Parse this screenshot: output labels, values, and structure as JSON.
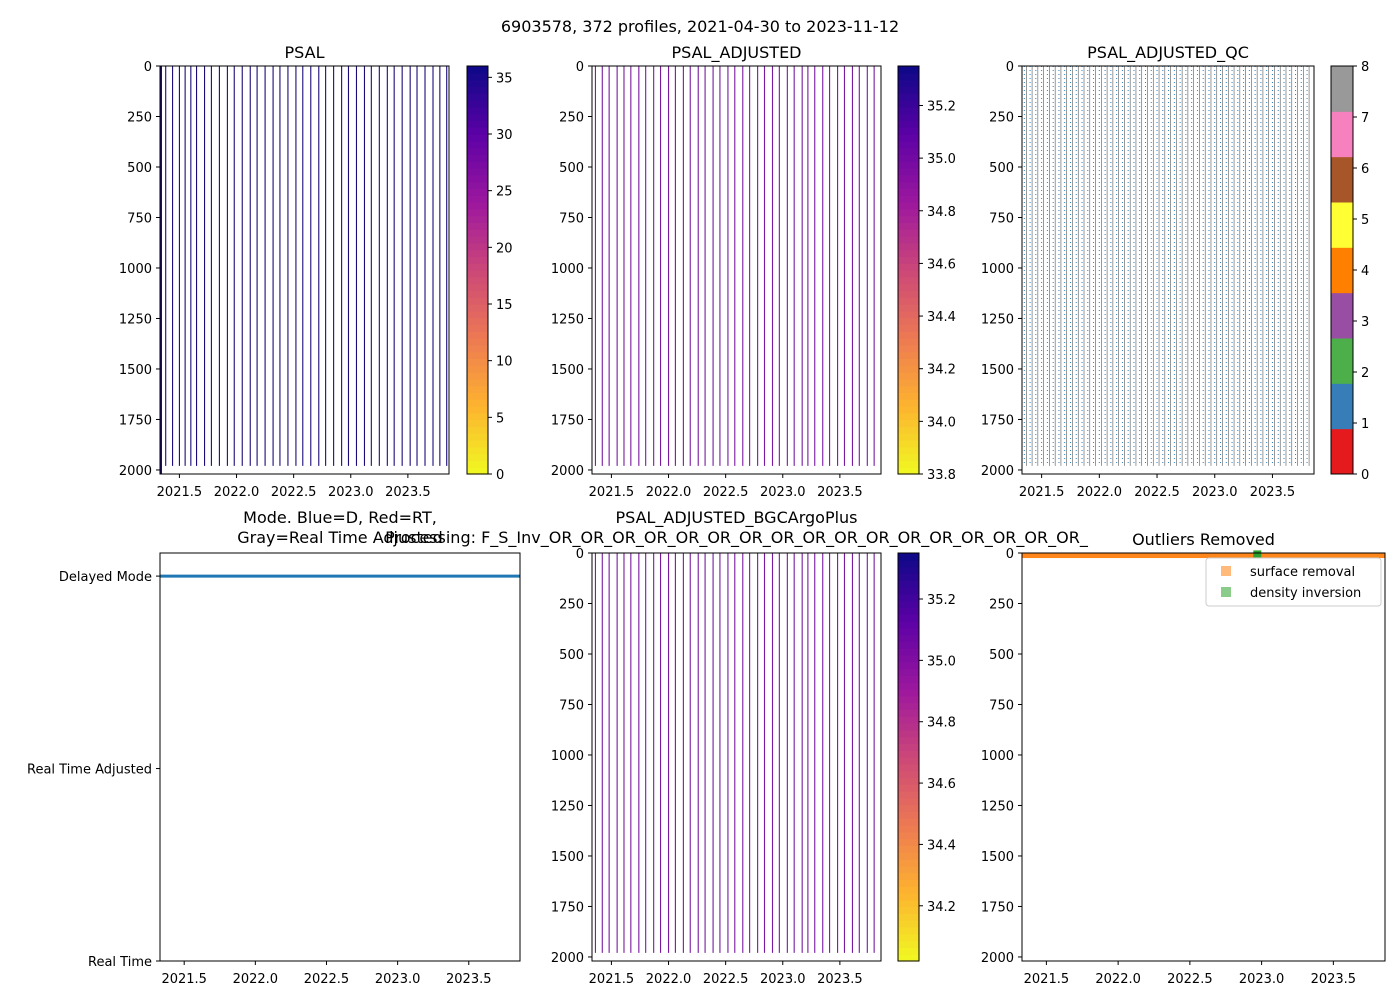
{
  "figure": {
    "suptitle": "6903578, 372 profiles, 2021-04-30 to 2023-11-12"
  },
  "colors": {
    "psal_lines": "#1b0c7a",
    "adjusted_lines": "#7a1aa0",
    "mode_line": "#1f77b4",
    "qc_points": "#2d7fb8",
    "outlier_surface": "#ff7f0e",
    "outlier_density": "#2ca02c"
  },
  "chart_data": [
    {
      "id": "psal",
      "type": "heatmap",
      "title": "PSAL",
      "xlim": [
        2021.33,
        2023.86
      ],
      "ylim": [
        2020,
        0
      ],
      "xticks": [
        "2021.5",
        "2022.0",
        "2022.5",
        "2023.0",
        "2023.5"
      ],
      "xtick_values": [
        2021.5,
        2022.0,
        2022.5,
        2023.0,
        2023.5
      ],
      "yticks": [
        "0",
        "250",
        "500",
        "750",
        "1000",
        "1250",
        "1500",
        "1750",
        "2000"
      ],
      "ytick_values": [
        0,
        250,
        500,
        750,
        1000,
        1250,
        1500,
        1750,
        2000
      ],
      "colorbar": {
        "cmap": "plasma_r",
        "range": [
          0,
          36
        ],
        "ticks": [
          "0",
          "5",
          "10",
          "15",
          "20",
          "25",
          "30",
          "35"
        ],
        "tick_values": [
          0,
          5,
          10,
          15,
          20,
          25,
          30,
          35
        ]
      },
      "profile_times": [
        2021.34,
        2021.38,
        2021.44,
        2021.5,
        2021.55,
        2021.6,
        2021.65,
        2021.72,
        2021.78,
        2021.85,
        2021.92,
        2021.98,
        2022.05,
        2022.12,
        2022.18,
        2022.25,
        2022.32,
        2022.38,
        2022.45,
        2022.52,
        2022.58,
        2022.65,
        2022.72,
        2022.78,
        2022.85,
        2022.92,
        2022.98,
        2023.05,
        2023.12,
        2023.18,
        2023.25,
        2023.32,
        2023.38,
        2023.45,
        2023.52,
        2023.58,
        2023.65,
        2023.72,
        2023.78,
        2023.84
      ],
      "profile_max_depth": 1980
    },
    {
      "id": "psal_adjusted",
      "type": "heatmap",
      "title": "PSAL_ADJUSTED",
      "xlim": [
        2021.33,
        2023.86
      ],
      "ylim": [
        2020,
        0
      ],
      "xticks": [
        "2021.5",
        "2022.0",
        "2022.5",
        "2023.0",
        "2023.5"
      ],
      "xtick_values": [
        2021.5,
        2022.0,
        2022.5,
        2023.0,
        2023.5
      ],
      "yticks": [
        "0",
        "250",
        "500",
        "750",
        "1000",
        "1250",
        "1500",
        "1750",
        "2000"
      ],
      "ytick_values": [
        0,
        250,
        500,
        750,
        1000,
        1250,
        1500,
        1750,
        2000
      ],
      "colorbar": {
        "cmap": "plasma_r",
        "range": [
          33.8,
          35.35
        ],
        "ticks": [
          "33.8",
          "34.0",
          "34.2",
          "34.4",
          "34.6",
          "34.8",
          "35.0",
          "35.2"
        ],
        "tick_values": [
          33.8,
          34.0,
          34.2,
          34.4,
          34.6,
          34.8,
          35.0,
          35.2
        ]
      },
      "profile_times": [
        2021.36,
        2021.42,
        2021.48,
        2021.55,
        2021.61,
        2021.67,
        2021.74,
        2021.8,
        2021.87,
        2021.93,
        2022.0,
        2022.06,
        2022.13,
        2022.19,
        2022.26,
        2022.32,
        2022.39,
        2022.45,
        2022.52,
        2022.58,
        2022.65,
        2022.71,
        2022.78,
        2022.84,
        2022.91,
        2022.97,
        2023.04,
        2023.1,
        2023.17,
        2023.22,
        2023.28,
        2023.35,
        2023.41,
        2023.48,
        2023.54,
        2023.61,
        2023.67,
        2023.74,
        2023.8
      ],
      "profile_max_depth": 1980
    },
    {
      "id": "psal_adjusted_qc",
      "type": "scatter",
      "title": "PSAL_ADJUSTED_QC",
      "xlim": [
        2021.33,
        2023.86
      ],
      "ylim": [
        2020,
        0
      ],
      "xticks": [
        "2021.5",
        "2022.0",
        "2022.5",
        "2023.0",
        "2023.5"
      ],
      "xtick_values": [
        2021.5,
        2022.0,
        2022.5,
        2023.0,
        2023.5
      ],
      "yticks": [
        "0",
        "250",
        "500",
        "750",
        "1000",
        "1250",
        "1500",
        "1750",
        "2000"
      ],
      "ytick_values": [
        0,
        250,
        500,
        750,
        1000,
        1250,
        1500,
        1750,
        2000
      ],
      "colorbar": {
        "cmap": "qualitative",
        "range": [
          0,
          8
        ],
        "ticks": [
          "0",
          "1",
          "2",
          "3",
          "4",
          "5",
          "6",
          "7",
          "8"
        ],
        "tick_values": [
          0,
          1,
          2,
          3,
          4,
          5,
          6,
          7,
          8
        ],
        "bins": [
          "#e41a1c",
          "#377eb8",
          "#4daf4a",
          "#984ea3",
          "#ff7f00",
          "#ffff33",
          "#a65628",
          "#f781bf",
          "#999999"
        ]
      },
      "profile_times": [
        2021.35,
        2021.4,
        2021.45,
        2021.5,
        2021.55,
        2021.6,
        2021.65,
        2021.7,
        2021.75,
        2021.8,
        2021.85,
        2021.9,
        2021.95,
        2022.0,
        2022.05,
        2022.1,
        2022.15,
        2022.2,
        2022.25,
        2022.3,
        2022.35,
        2022.4,
        2022.45,
        2022.5,
        2022.55,
        2022.6,
        2022.65,
        2022.7,
        2022.75,
        2022.8,
        2022.85,
        2022.9,
        2022.95,
        2023.0,
        2023.05,
        2023.1,
        2023.15,
        2023.2,
        2023.25,
        2023.3,
        2023.35,
        2023.4,
        2023.45,
        2023.5,
        2023.55,
        2023.6,
        2023.65,
        2023.7,
        2023.75,
        2023.8
      ],
      "qc_value": 1,
      "profile_max_depth": 1980
    },
    {
      "id": "mode",
      "type": "line",
      "title_lines": [
        "Mode. Blue=D, Red=RT,",
        "Gray=Real Time Adjusted"
      ],
      "xlim": [
        2021.33,
        2023.86
      ],
      "xticks": [
        "2021.5",
        "2022.0",
        "2022.5",
        "2023.0",
        "2023.5"
      ],
      "xtick_values": [
        2021.5,
        2022.0,
        2022.5,
        2023.0,
        2023.5
      ],
      "ylim": [
        0,
        2.12
      ],
      "yticks": [
        "Delayed Mode",
        "Real Time Adjusted",
        "Real Time"
      ],
      "ytick_values": [
        2,
        1,
        0
      ],
      "series": [
        {
          "name": "Delayed Mode",
          "x": [
            2021.33,
            2023.86
          ],
          "y": [
            2,
            2
          ]
        }
      ]
    },
    {
      "id": "psal_adjusted_bgc",
      "type": "heatmap",
      "title_lines": [
        "PSAL_ADJUSTED_BGCArgoPlus",
        "Processing: F_S_Inv_OR_OR_OR_OR_OR_OR_OR_OR_OR_OR_OR_OR_OR_OR_OR_OR_OR_"
      ],
      "xlim": [
        2021.33,
        2023.86
      ],
      "ylim": [
        2020,
        0
      ],
      "xticks": [
        "2021.5",
        "2022.0",
        "2022.5",
        "2023.0",
        "2023.5"
      ],
      "xtick_values": [
        2021.5,
        2022.0,
        2022.5,
        2023.0,
        2023.5
      ],
      "yticks": [
        "0",
        "250",
        "500",
        "750",
        "1000",
        "1250",
        "1500",
        "1750",
        "2000"
      ],
      "ytick_values": [
        0,
        250,
        500,
        750,
        1000,
        1250,
        1500,
        1750,
        2000
      ],
      "colorbar": {
        "cmap": "plasma_r",
        "range": [
          34.02,
          35.35
        ],
        "ticks": [
          "34.2",
          "34.4",
          "34.6",
          "34.8",
          "35.0",
          "35.2"
        ],
        "tick_values": [
          34.2,
          34.4,
          34.6,
          34.8,
          35.0,
          35.2
        ]
      },
      "profile_times": [
        2021.36,
        2021.42,
        2021.48,
        2021.55,
        2021.61,
        2021.67,
        2021.74,
        2021.8,
        2021.87,
        2021.93,
        2022.0,
        2022.06,
        2022.13,
        2022.19,
        2022.26,
        2022.32,
        2022.39,
        2022.45,
        2022.52,
        2022.58,
        2022.65,
        2022.71,
        2022.78,
        2022.84,
        2022.91,
        2022.97,
        2023.04,
        2023.1,
        2023.17,
        2023.22,
        2023.28,
        2023.35,
        2023.41,
        2023.48,
        2023.54,
        2023.61,
        2023.67,
        2023.74,
        2023.8
      ],
      "profile_max_depth": 1980
    },
    {
      "id": "outliers",
      "type": "scatter",
      "title": "Outliers Removed",
      "xlim": [
        2021.33,
        2023.86
      ],
      "ylim": [
        2020,
        0
      ],
      "xticks": [
        "2021.5",
        "2022.0",
        "2022.5",
        "2023.0",
        "2023.5"
      ],
      "xtick_values": [
        2021.5,
        2022.0,
        2022.5,
        2023.0,
        2023.5
      ],
      "yticks": [
        "0",
        "250",
        "500",
        "750",
        "1000",
        "1250",
        "1500",
        "1750",
        "2000"
      ],
      "ytick_values": [
        0,
        250,
        500,
        750,
        1000,
        1250,
        1500,
        1750,
        2000
      ],
      "legend": {
        "placement": "top-right",
        "entries": [
          "surface removal",
          "density inversion"
        ]
      },
      "series": [
        {
          "name": "surface removal",
          "x_range": [
            2021.33,
            2023.86
          ],
          "depth_range": [
            0,
            25
          ]
        },
        {
          "name": "density inversion",
          "x": [
            2022.97
          ],
          "y": [
            2
          ]
        }
      ]
    }
  ]
}
